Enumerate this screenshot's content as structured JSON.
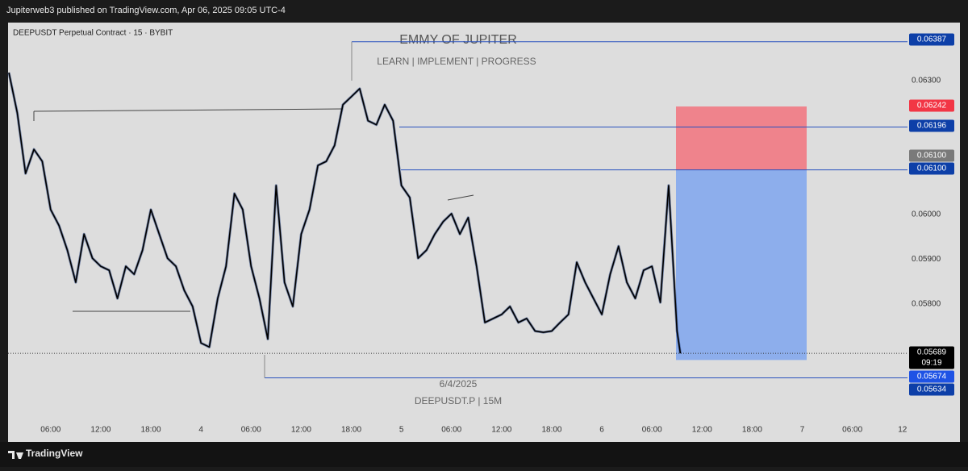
{
  "header": {
    "published": "Jupiterweb3 published on TradingView.com, Apr 06, 2025 09:05 UTC-4"
  },
  "footer": {
    "brand": "TradingView"
  },
  "chart_data": {
    "type": "line",
    "symbol": "DEEPUSDT Perpetual Contract · 15 · BYBIT",
    "title": "EMMY OF JUPITER",
    "subtitle": "LEARN  | IMPLEMENT |  PROGRESS",
    "watermark_date": "6/4/2025",
    "watermark_symbol": "DEEPUSDT.P | 15M",
    "color": "#000000",
    "x": [
      1,
      2,
      3,
      4,
      5,
      6,
      7,
      8,
      9,
      10,
      11,
      12,
      13,
      14,
      15,
      16,
      17,
      18,
      19,
      20,
      21,
      22,
      23,
      24,
      25,
      26,
      27,
      28,
      29,
      30,
      31,
      32,
      33,
      34,
      35,
      36,
      37,
      38,
      39,
      40,
      41,
      42,
      43,
      44,
      45,
      46,
      47,
      48,
      49,
      50,
      51,
      52,
      53,
      54,
      55,
      56,
      57,
      58,
      59,
      60,
      61,
      62,
      63,
      64,
      65,
      66,
      67,
      68,
      69,
      70,
      71,
      72,
      73,
      74,
      75,
      76,
      77,
      78,
      79,
      80,
      81,
      81.4
    ],
    "values": [
      0.06318,
      0.06228,
      0.06092,
      0.06146,
      0.06119,
      0.06011,
      0.05975,
      0.0592,
      0.05848,
      0.05956,
      0.05902,
      0.05884,
      0.05875,
      0.05812,
      0.05884,
      0.05866,
      0.0592,
      0.06011,
      0.05956,
      0.05902,
      0.05884,
      0.0583,
      0.05794,
      0.05712,
      0.05703,
      0.05812,
      0.05884,
      0.06047,
      0.06011,
      0.05884,
      0.05812,
      0.05721,
      0.06065,
      0.05848,
      0.05794,
      0.05956,
      0.06011,
      0.0611,
      0.06119,
      0.06155,
      0.06246,
      0.06264,
      0.06282,
      0.0621,
      0.06201,
      0.06246,
      0.0621,
      0.06065,
      0.06038,
      0.05902,
      0.0592,
      0.05956,
      0.05984,
      0.06002,
      0.05956,
      0.05993,
      0.05884,
      0.05758,
      0.05767,
      0.05776,
      0.05794,
      0.05758,
      0.05767,
      0.05739,
      0.05736,
      0.05739,
      0.05758,
      0.05776,
      0.05893,
      0.05848,
      0.05812,
      0.05776,
      0.05866,
      0.05929,
      0.05848,
      0.05812,
      0.05875,
      0.05884,
      0.05803,
      0.06065,
      0.05739,
      0.05689
    ],
    "xlim": [
      0.9,
      108.6
    ],
    "ylim": [
      0.0555,
      0.0643
    ],
    "xticks": [
      {
        "value": 6,
        "label": "06:00"
      },
      {
        "value": 12,
        "label": "12:00"
      },
      {
        "value": 18,
        "label": "18:00"
      },
      {
        "value": 24,
        "label": "4"
      },
      {
        "value": 30,
        "label": "06:00"
      },
      {
        "value": 36,
        "label": "12:00"
      },
      {
        "value": 42,
        "label": "18:00"
      },
      {
        "value": 48,
        "label": "5"
      },
      {
        "value": 54,
        "label": "06:00"
      },
      {
        "value": 60,
        "label": "12:00"
      },
      {
        "value": 66,
        "label": "18:00"
      },
      {
        "value": 72,
        "label": "6"
      },
      {
        "value": 78,
        "label": "06:00"
      },
      {
        "value": 84,
        "label": "12:00"
      },
      {
        "value": 90,
        "label": "18:00"
      },
      {
        "value": 96,
        "label": "7"
      },
      {
        "value": 102,
        "label": "06:00"
      },
      {
        "value": 108,
        "label": "12"
      }
    ],
    "yticks": [
      {
        "value": 0.063,
        "label": "0.06300"
      },
      {
        "value": 0.06,
        "label": "0.06000"
      },
      {
        "value": 0.059,
        "label": "0.05900"
      },
      {
        "value": 0.058,
        "label": "0.05800"
      }
    ],
    "price_labels": [
      {
        "value": 0.06387,
        "color": "#0d3fa8"
      },
      {
        "value": 0.06242,
        "color": "#f23645"
      },
      {
        "value": 0.06196,
        "color": "#0d3fa8"
      },
      {
        "value": 0.061,
        "label": "0.06100",
        "color": "#7a7a7a"
      },
      {
        "value": 0.061,
        "label": "0.06100",
        "color": "#0d3fa8"
      },
      {
        "value": 0.05689,
        "color": "#000000",
        "time": "09:19"
      },
      {
        "value": 0.05674,
        "color": "#1e53e5"
      },
      {
        "value": 0.05634,
        "color": "#0d3fa8"
      }
    ],
    "grid": false
  }
}
